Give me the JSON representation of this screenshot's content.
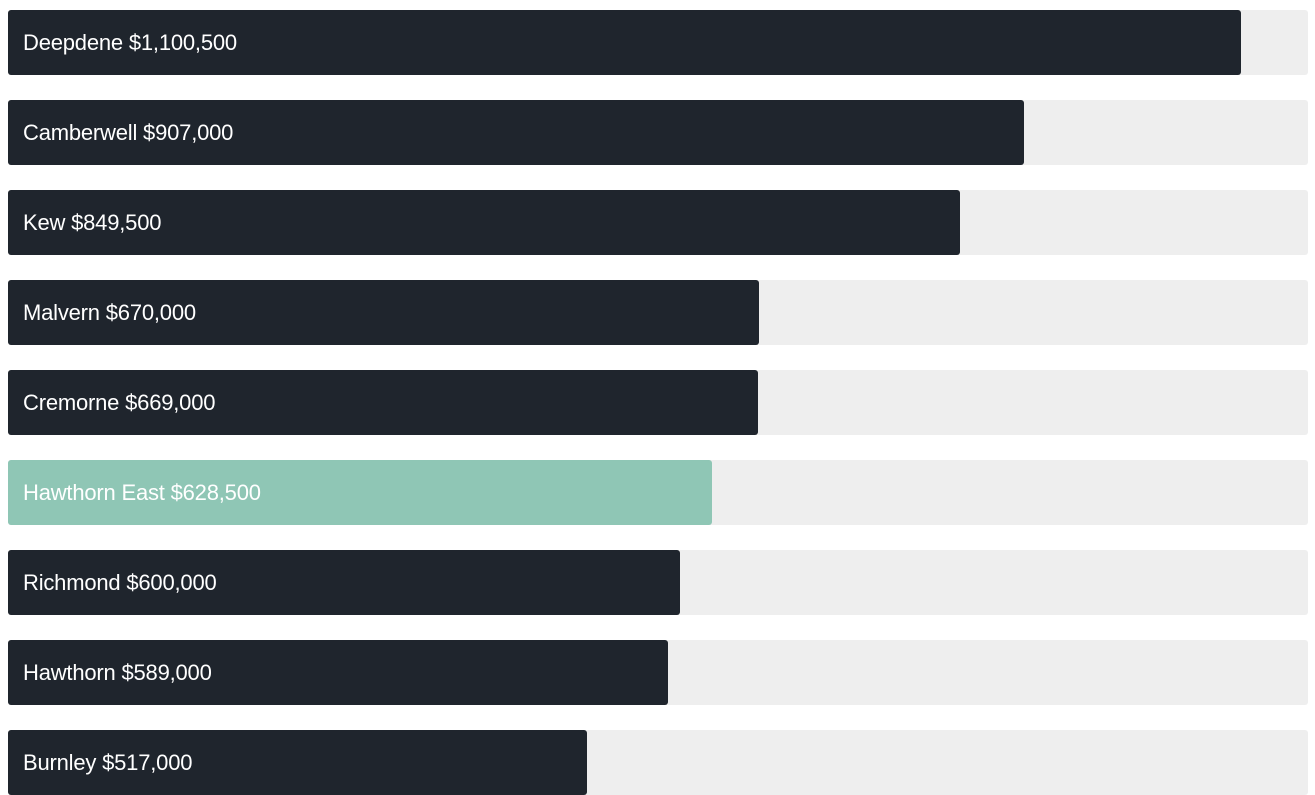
{
  "chart_data": {
    "type": "bar",
    "orientation": "horizontal",
    "categories": [
      "Deepdene",
      "Camberwell",
      "Kew",
      "Malvern",
      "Cremorne",
      "Hawthorn East",
      "Richmond",
      "Hawthorn",
      "Burnley"
    ],
    "values": [
      1100500,
      907000,
      849500,
      670000,
      669000,
      628500,
      600000,
      589000,
      517000
    ],
    "labels": [
      "$1,100,500",
      "$907,000",
      "$849,500",
      "$670,000",
      "$669,000",
      "$628,500",
      "$600,000",
      "$589,000",
      "$517,000"
    ],
    "highlight": "Hawthorn East",
    "xlim": [
      0,
      1160000
    ],
    "colors": {
      "bar": "#1f252d",
      "highlight": "#8fc6b5",
      "track": "#eeeeee"
    }
  }
}
